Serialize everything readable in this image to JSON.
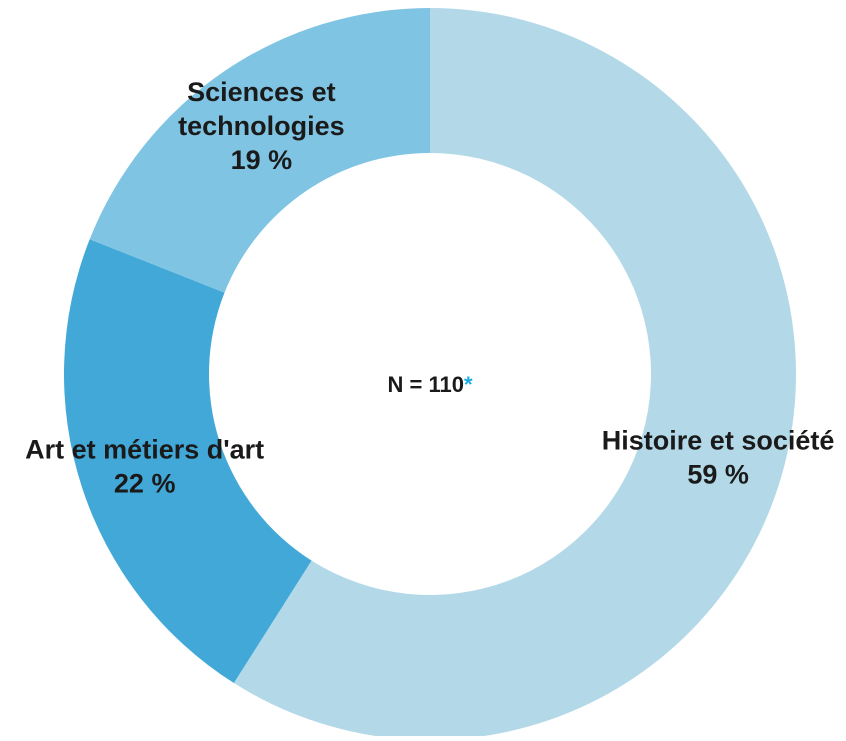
{
  "chart_data": {
    "type": "pie",
    "variant": "donut",
    "categories": [
      "Histoire et société",
      "Art et métiers d'art",
      "Sciences et technologies"
    ],
    "values": [
      59,
      22,
      19
    ],
    "labels": [
      [
        "Histoire et société",
        "59 %"
      ],
      [
        "Art et métiers d'art",
        "22 %"
      ],
      [
        "Sciences et",
        "technologies",
        "19 %"
      ]
    ],
    "colors": [
      "#b3d9e8",
      "#42a8d8",
      "#7fc4e3"
    ],
    "center_text": "N = 110",
    "center_mark": "*",
    "center_mark_color": "#1aaee0",
    "start_angle_deg": 0,
    "direction": "clockwise",
    "title": "",
    "legend": "none",
    "unit": "%"
  }
}
